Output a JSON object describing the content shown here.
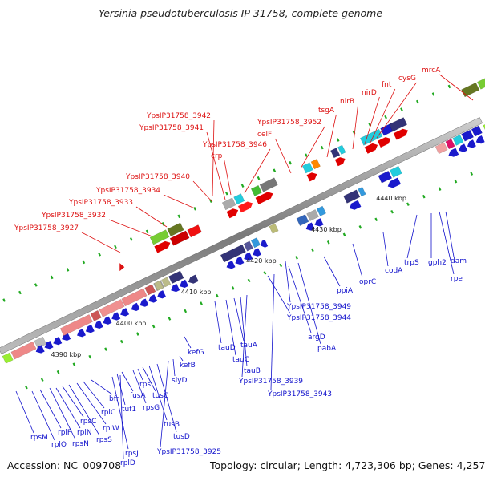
{
  "title": "Yersinia pseudotuberculosis IP 31758, complete genome",
  "footer": {
    "accession_label": "Accession: ",
    "accession": "NC_009708",
    "topology_label": "Topology: ",
    "topology": "circular",
    "length_label": "; Length: ",
    "length": "4,723,306 bp",
    "genes_label": "; Genes: ",
    "genes": "4,257"
  },
  "colors": {
    "top_label": "#dd1111",
    "bottom_label": "#1111cc",
    "forward_gene": "#e00000",
    "reverse_gene": "#1a1acc",
    "backbone": "#888888",
    "tick": "#22aa22"
  },
  "scale_ticks": [
    "4390 kbp",
    "4400 kbp",
    "4410 kbp",
    "4420 kbp",
    "4430 kbp",
    "4440 kbp"
  ],
  "top_genes": [
    "YpsIP31758_3927",
    "YpsIP31758_3932",
    "YpsIP31758_3933",
    "YpsIP31758_3934",
    "YpsIP31758_3940",
    "YpsIP31758_3941",
    "YpsIP31758_3942",
    "crp",
    "YpsIP31758_3946",
    "celF",
    "YpsIP31758_3952",
    "tsgA",
    "nirB",
    "nirD",
    "fnt",
    "cysG",
    "mrcA"
  ],
  "bottom_genes": [
    "rpsM",
    "rplO",
    "rplF",
    "rpsN",
    "rplN",
    "rpsC",
    "rpsS",
    "rplW",
    "rplC",
    "bfr",
    "rpsJ",
    "rplD",
    "tuf1",
    "fusA",
    "rpsG",
    "rpsL",
    "tusC",
    "tusB",
    "tusD",
    "YpsIP31758_3925",
    "slyD",
    "kefB",
    "kefG",
    "tauD",
    "tauC",
    "tauA",
    "tauB",
    "YpsIP31758_3939",
    "YpsIP31758_3944",
    "YpsIP31758_3943",
    "argD",
    "pabA",
    "YpsIP31758_3949",
    "ppiA",
    "oprC",
    "codA",
    "trpS",
    "gph2",
    "rpe",
    "dam"
  ]
}
